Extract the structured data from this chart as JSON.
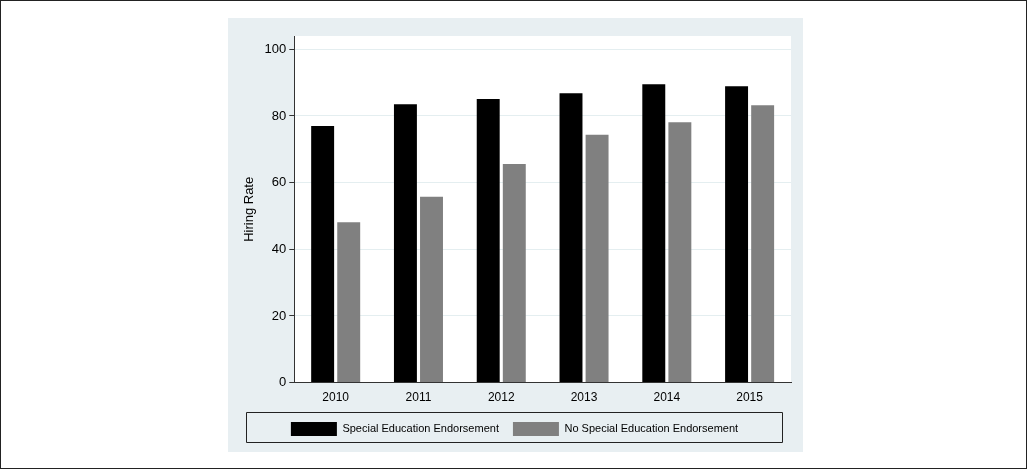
{
  "chart_data": {
    "type": "bar",
    "ylabel": "Hiring Rate",
    "categories": [
      "2010",
      "2011",
      "2012",
      "2013",
      "2014",
      "2015"
    ],
    "series": [
      {
        "name": "Special Education Endorsement",
        "color": "#000000",
        "values": [
          77.0,
          83.5,
          85.1,
          86.8,
          89.5,
          88.9
        ]
      },
      {
        "name": "No Special Education Endorsement",
        "color": "#808080",
        "values": [
          48.1,
          55.8,
          65.6,
          74.4,
          78.1,
          83.2
        ]
      }
    ],
    "ylim": [
      0,
      104
    ],
    "yticks": [
      0,
      20,
      40,
      60,
      80,
      100
    ],
    "grid": "y",
    "legend": "bottom"
  }
}
